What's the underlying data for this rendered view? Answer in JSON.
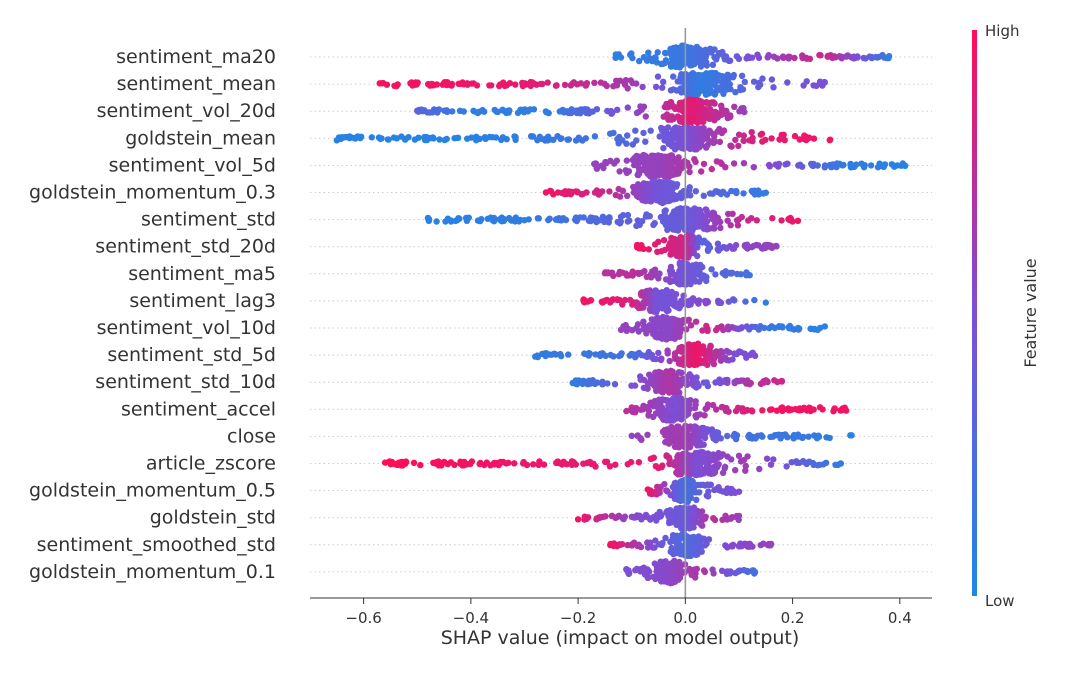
{
  "chart_data": {
    "type": "scatter",
    "subtype": "shap-beeswarm",
    "xlabel": "SHAP value (impact on model output)",
    "xlim": [
      -0.7,
      0.46
    ],
    "xticks": [
      -0.6,
      -0.4,
      -0.2,
      0.0,
      0.2,
      0.4
    ],
    "xtick_labels": [
      "−0.6",
      "−0.4",
      "−0.2",
      "0.0",
      "0.2",
      "0.4"
    ],
    "grid": false,
    "colorbar": {
      "label": "Feature value",
      "high_label": "High",
      "low_label": "Low",
      "low_color": "#1e88e5",
      "mid_color": "#7b4fd6",
      "high_color": "#ff0d57"
    },
    "features": [
      {
        "name": "sentiment_ma20",
        "range": [
          -0.13,
          0.38
        ],
        "points": [
          {
            "x": -0.13,
            "v": 0.1
          },
          {
            "x": 0.0,
            "v": 0.15
          },
          {
            "x": 0.2,
            "v": 0.7
          },
          {
            "x": 0.26,
            "v": 0.8
          },
          {
            "x": 0.32,
            "v": 0.5
          },
          {
            "x": 0.38,
            "v": 0.1
          }
        ]
      },
      {
        "name": "sentiment_mean",
        "range": [
          -0.57,
          0.26
        ],
        "points": [
          {
            "x": -0.57,
            "v": 0.95
          },
          {
            "x": -0.45,
            "v": 0.95
          },
          {
            "x": -0.3,
            "v": 0.9
          },
          {
            "x": -0.1,
            "v": 0.65
          },
          {
            "x": 0.03,
            "v": 0.1
          },
          {
            "x": 0.15,
            "v": 0.4
          },
          {
            "x": 0.26,
            "v": 0.5
          }
        ]
      },
      {
        "name": "sentiment_vol_20d",
        "range": [
          -0.5,
          0.11
        ],
        "points": [
          {
            "x": -0.5,
            "v": 0.3
          },
          {
            "x": -0.4,
            "v": 0.1
          },
          {
            "x": -0.25,
            "v": 0.1
          },
          {
            "x": -0.05,
            "v": 0.7
          },
          {
            "x": 0.01,
            "v": 0.9
          },
          {
            "x": 0.11,
            "v": 0.6
          }
        ]
      },
      {
        "name": "goldstein_mean",
        "range": [
          -0.65,
          0.27
        ],
        "points": [
          {
            "x": -0.65,
            "v": 0.05
          },
          {
            "x": -0.4,
            "v": 0.05
          },
          {
            "x": -0.15,
            "v": 0.2
          },
          {
            "x": 0.0,
            "v": 0.5
          },
          {
            "x": 0.15,
            "v": 0.9
          },
          {
            "x": 0.27,
            "v": 0.95
          }
        ]
      },
      {
        "name": "sentiment_vol_5d",
        "range": [
          -0.17,
          0.41
        ],
        "points": [
          {
            "x": -0.17,
            "v": 0.6
          },
          {
            "x": -0.05,
            "v": 0.6
          },
          {
            "x": 0.05,
            "v": 0.75
          },
          {
            "x": 0.2,
            "v": 0.45
          },
          {
            "x": 0.3,
            "v": 0.1
          },
          {
            "x": 0.41,
            "v": 0.05
          }
        ]
      },
      {
        "name": "goldstein_momentum_0.3",
        "range": [
          -0.26,
          0.15
        ],
        "points": [
          {
            "x": -0.26,
            "v": 0.95
          },
          {
            "x": -0.15,
            "v": 0.8
          },
          {
            "x": -0.05,
            "v": 0.45
          },
          {
            "x": 0.05,
            "v": 0.3
          },
          {
            "x": 0.15,
            "v": 0.1
          }
        ]
      },
      {
        "name": "sentiment_std",
        "range": [
          -0.48,
          0.21
        ],
        "points": [
          {
            "x": -0.48,
            "v": 0.05
          },
          {
            "x": -0.3,
            "v": 0.1
          },
          {
            "x": -0.1,
            "v": 0.35
          },
          {
            "x": 0.0,
            "v": 0.4
          },
          {
            "x": 0.1,
            "v": 0.75
          },
          {
            "x": 0.21,
            "v": 0.95
          }
        ]
      },
      {
        "name": "sentiment_std_20d",
        "range": [
          -0.09,
          0.17
        ],
        "points": [
          {
            "x": -0.09,
            "v": 0.95
          },
          {
            "x": 0.0,
            "v": 0.8
          },
          {
            "x": 0.03,
            "v": 0.3
          },
          {
            "x": 0.1,
            "v": 0.55
          },
          {
            "x": 0.17,
            "v": 0.6
          }
        ]
      },
      {
        "name": "sentiment_ma5",
        "range": [
          -0.15,
          0.12
        ],
        "points": [
          {
            "x": -0.15,
            "v": 0.7
          },
          {
            "x": -0.1,
            "v": 0.75
          },
          {
            "x": 0.0,
            "v": 0.45
          },
          {
            "x": 0.12,
            "v": 0.2
          }
        ]
      },
      {
        "name": "sentiment_lag3",
        "range": [
          -0.19,
          0.15
        ],
        "points": [
          {
            "x": -0.19,
            "v": 0.95
          },
          {
            "x": -0.1,
            "v": 0.85
          },
          {
            "x": -0.05,
            "v": 0.45
          },
          {
            "x": 0.05,
            "v": 0.55
          },
          {
            "x": 0.15,
            "v": 0.1
          }
        ]
      },
      {
        "name": "sentiment_vol_10d",
        "range": [
          -0.12,
          0.26
        ],
        "points": [
          {
            "x": -0.12,
            "v": 0.6
          },
          {
            "x": -0.03,
            "v": 0.55
          },
          {
            "x": 0.05,
            "v": 0.85
          },
          {
            "x": 0.15,
            "v": 0.15
          },
          {
            "x": 0.26,
            "v": 0.05
          }
        ]
      },
      {
        "name": "sentiment_std_5d",
        "range": [
          -0.28,
          0.13
        ],
        "points": [
          {
            "x": -0.28,
            "v": 0.1
          },
          {
            "x": -0.1,
            "v": 0.2
          },
          {
            "x": 0.02,
            "v": 0.95
          },
          {
            "x": 0.09,
            "v": 0.5
          },
          {
            "x": 0.13,
            "v": 0.5
          }
        ]
      },
      {
        "name": "sentiment_std_10d",
        "range": [
          -0.21,
          0.18
        ],
        "points": [
          {
            "x": -0.21,
            "v": 0.1
          },
          {
            "x": -0.03,
            "v": 0.7
          },
          {
            "x": 0.04,
            "v": 0.4
          },
          {
            "x": 0.12,
            "v": 0.7
          },
          {
            "x": 0.18,
            "v": 0.8
          }
        ]
      },
      {
        "name": "sentiment_accel",
        "range": [
          -0.11,
          0.3
        ],
        "points": [
          {
            "x": -0.11,
            "v": 0.75
          },
          {
            "x": -0.02,
            "v": 0.5
          },
          {
            "x": 0.05,
            "v": 0.7
          },
          {
            "x": 0.15,
            "v": 0.95
          },
          {
            "x": 0.3,
            "v": 0.95
          }
        ]
      },
      {
        "name": "close",
        "range": [
          -0.1,
          0.31
        ],
        "points": [
          {
            "x": -0.1,
            "v": 0.6
          },
          {
            "x": 0.0,
            "v": 0.65
          },
          {
            "x": 0.1,
            "v": 0.2
          },
          {
            "x": 0.2,
            "v": 0.15
          },
          {
            "x": 0.31,
            "v": 0.05
          }
        ]
      },
      {
        "name": "article_zscore",
        "range": [
          -0.56,
          0.29
        ],
        "points": [
          {
            "x": -0.56,
            "v": 1.0
          },
          {
            "x": -0.19,
            "v": 0.9
          },
          {
            "x": -0.05,
            "v": 0.9
          },
          {
            "x": 0.02,
            "v": 0.5
          },
          {
            "x": 0.12,
            "v": 0.65
          },
          {
            "x": 0.29,
            "v": 0.1
          }
        ]
      },
      {
        "name": "goldstein_momentum_0.5",
        "range": [
          -0.07,
          0.1
        ],
        "points": [
          {
            "x": -0.07,
            "v": 0.95
          },
          {
            "x": 0.0,
            "v": 0.2
          },
          {
            "x": 0.05,
            "v": 0.45
          },
          {
            "x": 0.1,
            "v": 0.5
          }
        ]
      },
      {
        "name": "goldstein_std",
        "range": [
          -0.2,
          0.1
        ],
        "points": [
          {
            "x": -0.2,
            "v": 0.95
          },
          {
            "x": -0.1,
            "v": 0.55
          },
          {
            "x": 0.0,
            "v": 0.4
          },
          {
            "x": 0.05,
            "v": 0.75
          },
          {
            "x": 0.1,
            "v": 0.6
          }
        ]
      },
      {
        "name": "sentiment_smoothed_std",
        "range": [
          -0.14,
          0.16
        ],
        "points": [
          {
            "x": -0.14,
            "v": 0.95
          },
          {
            "x": -0.05,
            "v": 0.45
          },
          {
            "x": 0.0,
            "v": 0.25
          },
          {
            "x": 0.06,
            "v": 0.5
          },
          {
            "x": 0.16,
            "v": 0.6
          }
        ]
      },
      {
        "name": "goldstein_momentum_0.1",
        "range": [
          -0.11,
          0.13
        ],
        "points": [
          {
            "x": -0.11,
            "v": 0.5
          },
          {
            "x": -0.03,
            "v": 0.55
          },
          {
            "x": 0.03,
            "v": 0.7
          },
          {
            "x": 0.13,
            "v": 0.2
          }
        ]
      }
    ]
  }
}
